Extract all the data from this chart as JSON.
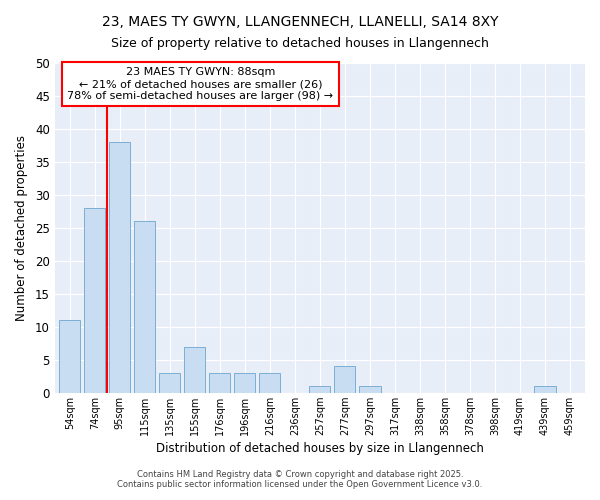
{
  "title1": "23, MAES TY GWYN, LLANGENNECH, LLANELLI, SA14 8XY",
  "title2": "Size of property relative to detached houses in Llangennech",
  "xlabel": "Distribution of detached houses by size in Llangennech",
  "ylabel": "Number of detached properties",
  "categories": [
    "54sqm",
    "74sqm",
    "95sqm",
    "115sqm",
    "135sqm",
    "155sqm",
    "176sqm",
    "196sqm",
    "216sqm",
    "236sqm",
    "257sqm",
    "277sqm",
    "297sqm",
    "317sqm",
    "338sqm",
    "358sqm",
    "378sqm",
    "398sqm",
    "419sqm",
    "439sqm",
    "459sqm"
  ],
  "values": [
    11,
    28,
    38,
    26,
    3,
    7,
    3,
    3,
    3,
    0,
    1,
    4,
    1,
    0,
    0,
    0,
    0,
    0,
    0,
    1,
    0
  ],
  "bar_color": "#c9ddf2",
  "bar_edgecolor": "#7bafd4",
  "annotation_title": "23 MAES TY GWYN: 88sqm",
  "annotation_line1": "← 21% of detached houses are smaller (26)",
  "annotation_line2": "78% of semi-detached houses are larger (98) →",
  "ylim": [
    0,
    50
  ],
  "yticks": [
    0,
    5,
    10,
    15,
    20,
    25,
    30,
    35,
    40,
    45,
    50
  ],
  "footnote1": "Contains HM Land Registry data © Crown copyright and database right 2025.",
  "footnote2": "Contains public sector information licensed under the Open Government Licence v3.0.",
  "background_color": "#ffffff",
  "plot_bg_color": "#e8eef8",
  "grid_color": "#ffffff"
}
